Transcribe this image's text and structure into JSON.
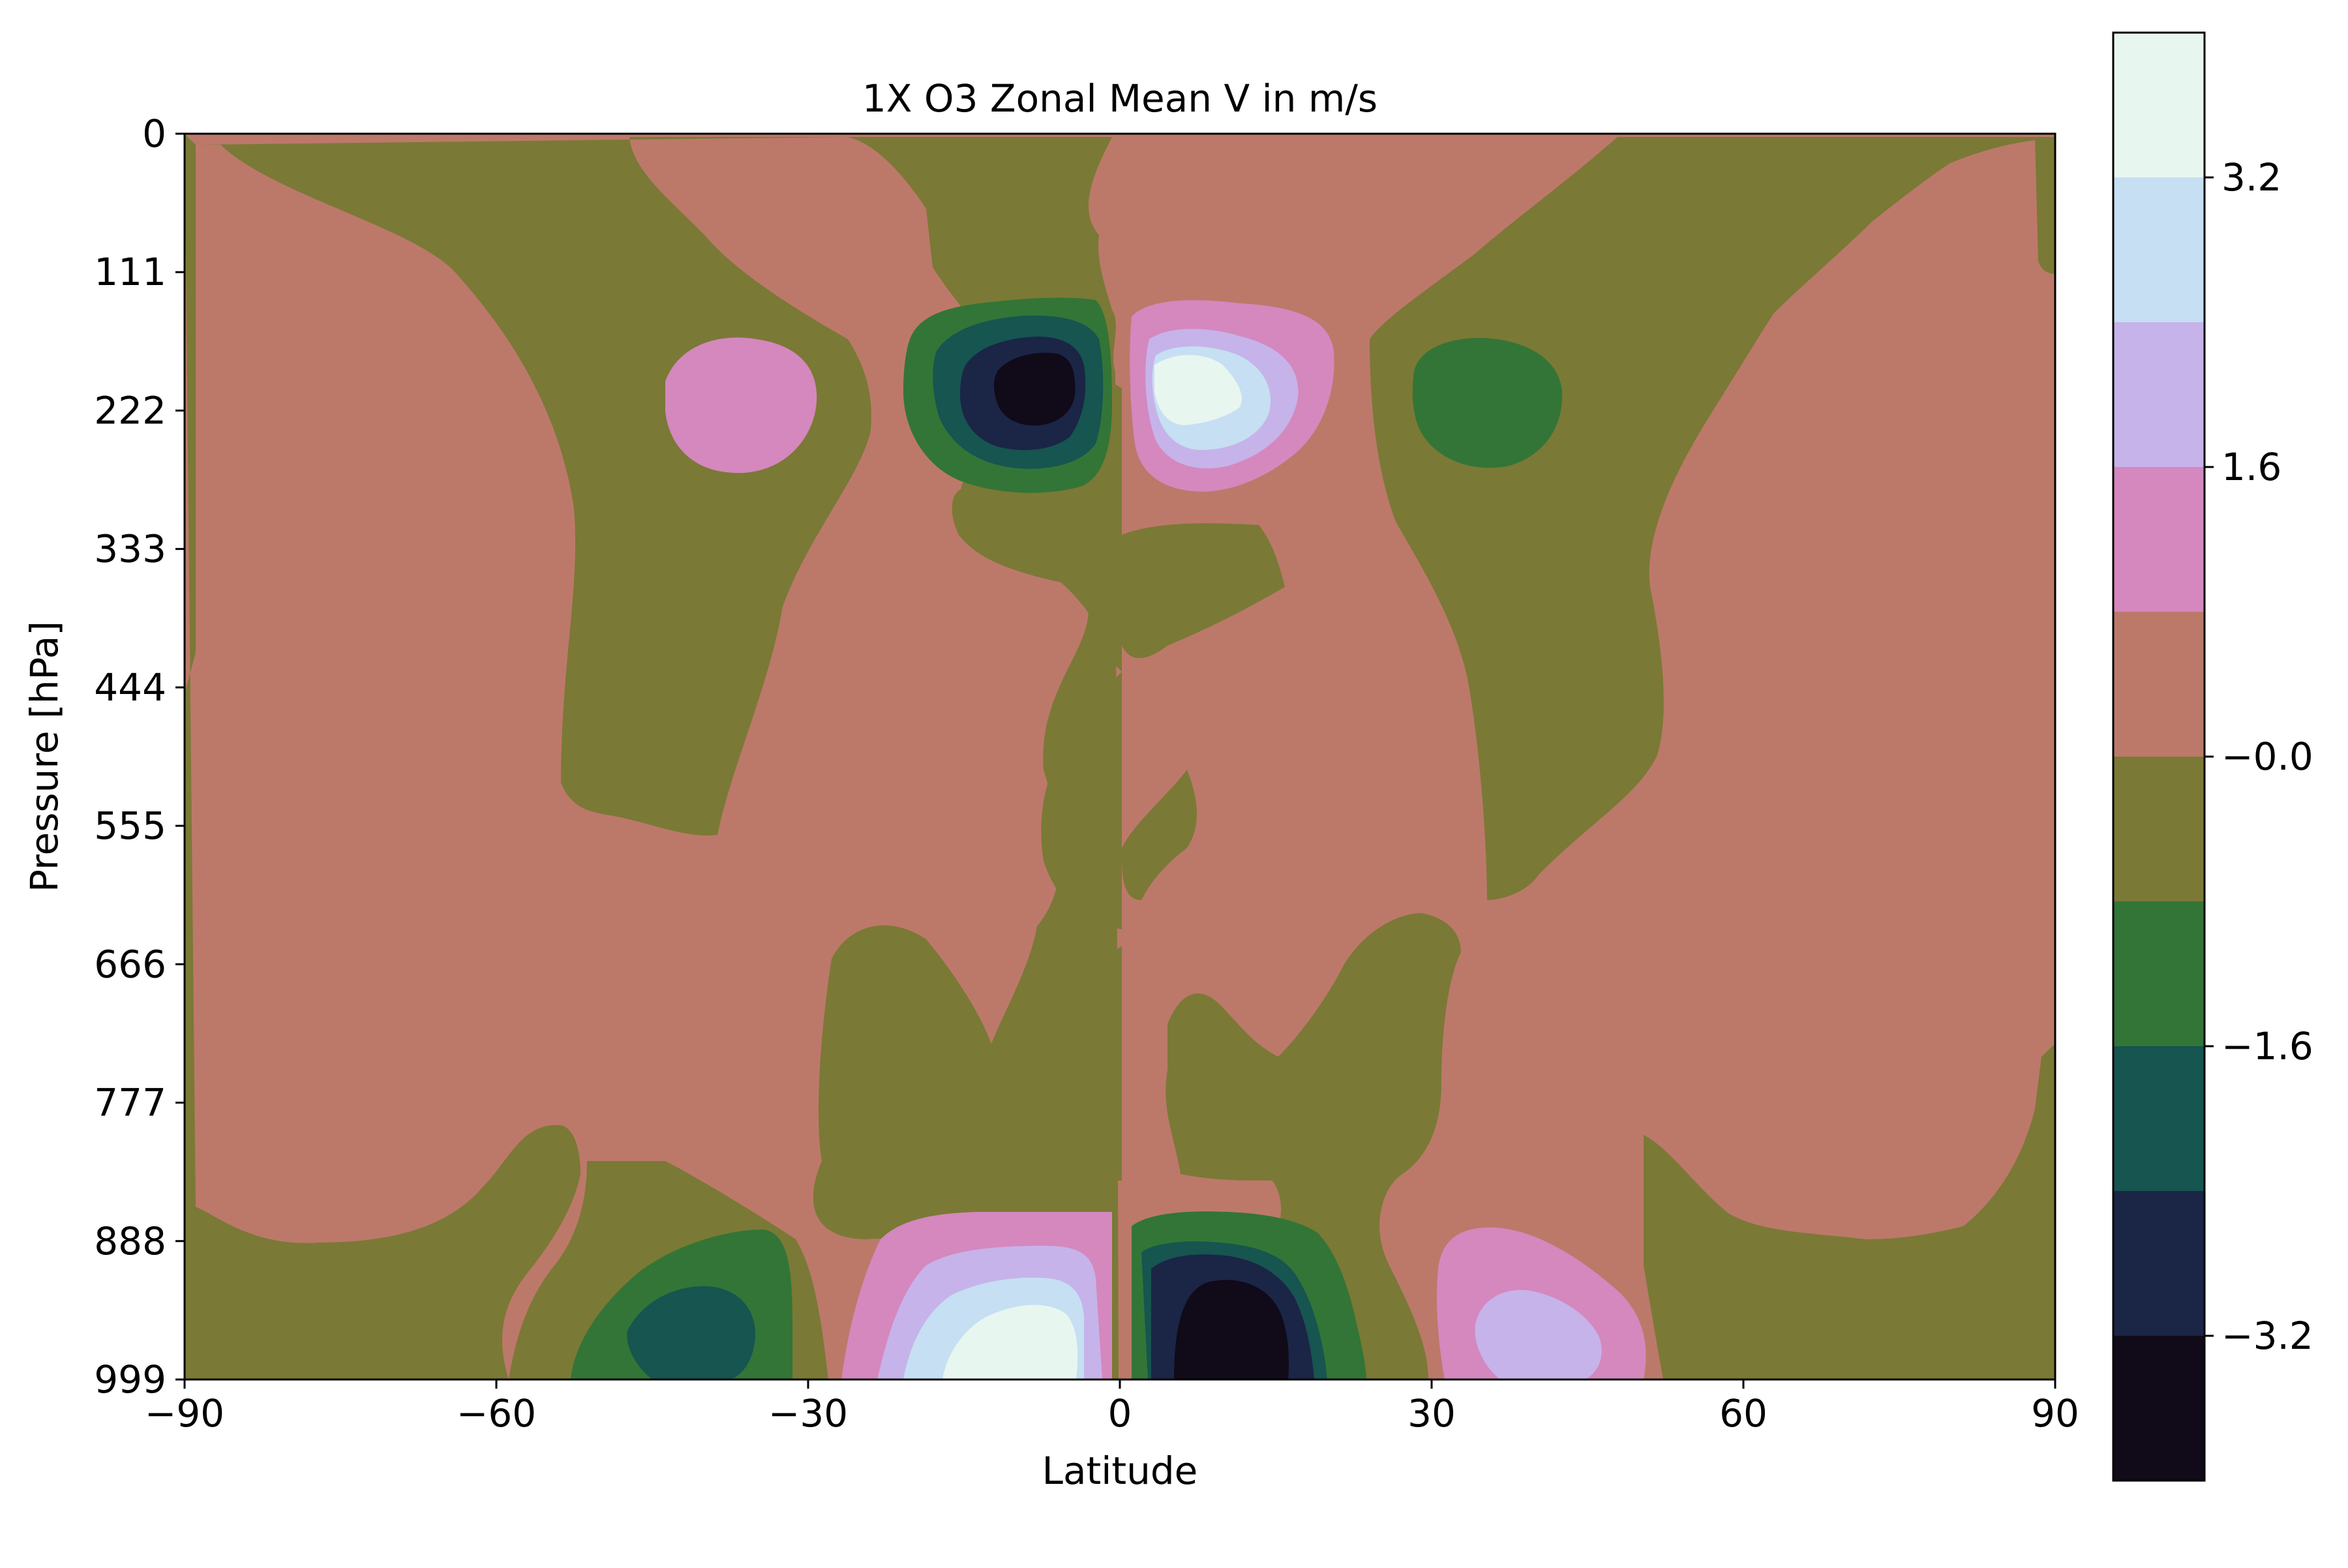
{
  "chart_data": {
    "type": "contourf",
    "title": "1X O3 Zonal Mean V in m/s",
    "xlabel": "Latitude",
    "ylabel": "Pressure [hPa]",
    "xlim": [
      -90,
      90
    ],
    "ylim": [
      999,
      0
    ],
    "y_inverted": true,
    "x_ticks": [
      "−90",
      "−60",
      "−30",
      "0",
      "30",
      "60",
      "90"
    ],
    "y_ticks": [
      "0",
      "111",
      "222",
      "333",
      "444",
      "555",
      "666",
      "777",
      "888",
      "999"
    ],
    "colorbar": {
      "tick_labels": [
        "3.2",
        "1.6",
        "−0.0",
        "−1.6",
        "−3.2"
      ],
      "levels": [
        -4.0,
        -3.2,
        -2.4,
        -1.6,
        -0.8,
        0.0,
        0.8,
        1.6,
        2.4,
        3.2,
        4.0
      ],
      "colors": [
        "#100a19",
        "#1b2546",
        "#165550",
        "#337537",
        "#7b7936",
        "#bc796a",
        "#d488be",
        "#c6b3ea",
        "#c6dff2",
        "#e8f6f0"
      ],
      "colormap": "cubehelix"
    },
    "grid": false,
    "features": [
      {
        "sign": "negative",
        "peak": -3.8,
        "lat": -11,
        "pressure": 190,
        "label": "upper-level minimum"
      },
      {
        "sign": "positive",
        "peak": 3.6,
        "lat": 9,
        "pressure": 190,
        "label": "upper-level maximum"
      },
      {
        "sign": "positive",
        "peak": 3.6,
        "lat": -11,
        "pressure": 980,
        "label": "surface maximum"
      },
      {
        "sign": "negative",
        "peak": -3.8,
        "lat": 11,
        "pressure": 980,
        "label": "surface minimum"
      },
      {
        "sign": "negative",
        "peak": -2.0,
        "lat": -41,
        "pressure": 975,
        "label": "surface minimum"
      },
      {
        "sign": "positive",
        "peak": 2.0,
        "lat": 40,
        "pressure": 975,
        "label": "surface maximum"
      },
      {
        "sign": "positive",
        "peak": 1.0,
        "lat": -40,
        "pressure": 215,
        "label": "upper-level maximum"
      },
      {
        "sign": "negative",
        "peak": -1.0,
        "lat": 37,
        "pressure": 215,
        "label": "upper-level minimum"
      }
    ]
  }
}
